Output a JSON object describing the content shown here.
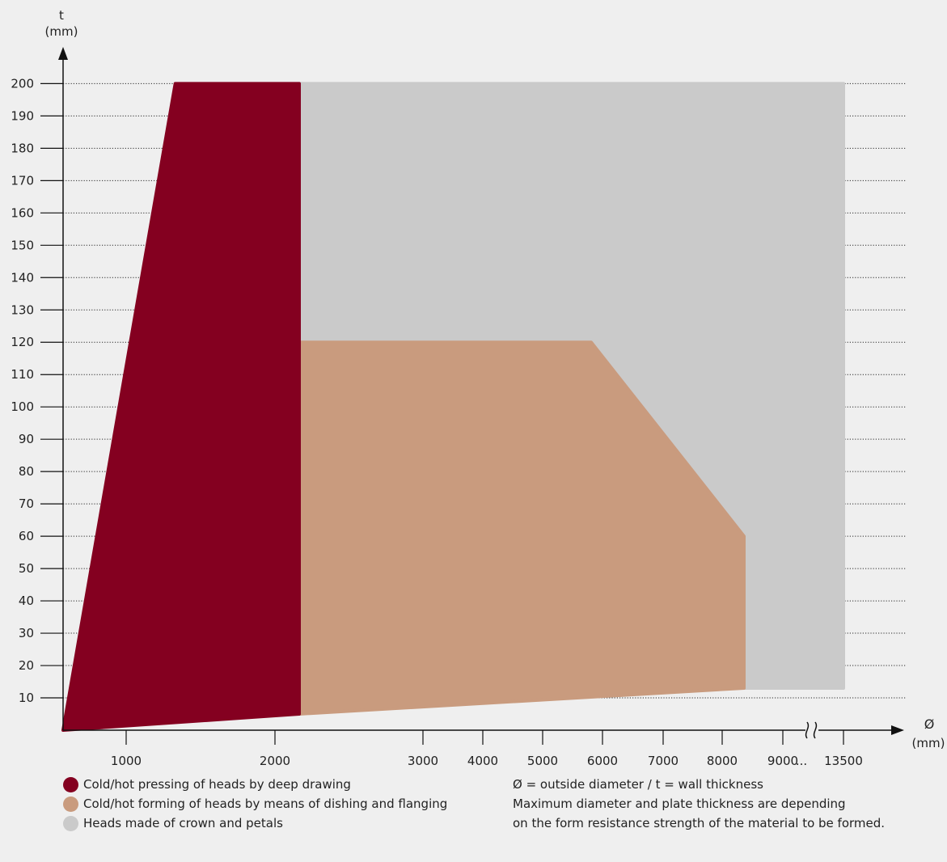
{
  "chart_data": {
    "type": "area",
    "y_axis": {
      "label": "t",
      "unit": "(mm)",
      "ticks": [
        10,
        20,
        30,
        40,
        50,
        60,
        70,
        80,
        90,
        100,
        110,
        120,
        130,
        140,
        150,
        160,
        170,
        180,
        190,
        200
      ],
      "range": [
        0,
        200
      ],
      "grid": true
    },
    "x_axis": {
      "label": "Ø",
      "unit": "(mm)",
      "ticks": [
        "1000",
        "2000",
        "3000",
        "4000",
        "5000",
        "6000",
        "7000",
        "8000",
        "9000",
        "...",
        "13500"
      ],
      "tick_values": [
        1000,
        2000,
        3000,
        4000,
        5000,
        6000,
        7000,
        8000,
        9000,
        13500
      ],
      "scale": "non-linear",
      "break_between": [
        9000,
        13500
      ]
    },
    "regions": [
      {
        "name": "Cold/hot pressing of heads by deep drawing",
        "color": "#840020",
        "points": [
          [
            600,
            0
          ],
          [
            1330,
            200
          ],
          [
            2170,
            200
          ],
          [
            2170,
            5
          ]
        ]
      },
      {
        "name": "Cold/hot forming of heads by means of dishing and flanging",
        "color": "#c99b7e",
        "points": [
          [
            2170,
            120
          ],
          [
            5850,
            120
          ],
          [
            8330,
            60
          ],
          [
            8330,
            13
          ],
          [
            2170,
            5
          ]
        ]
      },
      {
        "name": "Heads made of crown and petals",
        "color": "#cacaca",
        "points": [
          [
            2170,
            200
          ],
          [
            13500,
            200
          ],
          [
            13500,
            13
          ],
          [
            2170,
            13
          ]
        ]
      }
    ]
  },
  "legend": {
    "items": [
      {
        "label": "Cold/hot pressing of heads by deep drawing",
        "color": "#840020"
      },
      {
        "label": "Cold/hot forming of heads by means of dishing and flanging",
        "color": "#c99b7e"
      },
      {
        "label": "Heads made of crown and petals",
        "color": "#cacaca"
      }
    ]
  },
  "notes": {
    "line1": "Ø = outside diameter / t = wall thickness",
    "line2": "Maximum diameter and plate thickness are depending",
    "line3": "on the form resistance strength of the material to be formed."
  }
}
